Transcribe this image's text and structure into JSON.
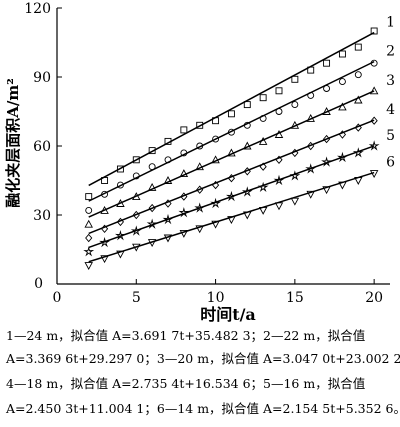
{
  "chart_data": {
    "type": "scatter",
    "xlabel": "时间t/a",
    "ylabel": "融化夹层面积A/m²",
    "xlim": [
      0,
      21
    ],
    "ylim": [
      0,
      120
    ],
    "xticks": [
      0,
      5,
      10,
      15,
      20
    ],
    "yticks": [
      30,
      60,
      90,
      120
    ],
    "grid": false,
    "series": [
      {
        "name": "1",
        "marker": "square",
        "fit": {
          "slope": 3.6917,
          "intercept": 35.4823
        },
        "points": [
          [
            2,
            38
          ],
          [
            3,
            45
          ],
          [
            4,
            50
          ],
          [
            5,
            54
          ],
          [
            6,
            58
          ],
          [
            7,
            62
          ],
          [
            8,
            67
          ],
          [
            9,
            69
          ],
          [
            10,
            71
          ],
          [
            11,
            74
          ],
          [
            12,
            78
          ],
          [
            13,
            81
          ],
          [
            14,
            84
          ],
          [
            15,
            89
          ],
          [
            16,
            93
          ],
          [
            17,
            96
          ],
          [
            18,
            100
          ],
          [
            19,
            103
          ],
          [
            20,
            110
          ]
        ]
      },
      {
        "name": "2",
        "marker": "circle",
        "fit": {
          "slope": 3.3696,
          "intercept": 29.297
        },
        "points": [
          [
            2,
            32
          ],
          [
            3,
            39
          ],
          [
            4,
            43
          ],
          [
            5,
            47
          ],
          [
            6,
            51
          ],
          [
            7,
            54
          ],
          [
            8,
            57
          ],
          [
            9,
            60
          ],
          [
            10,
            63
          ],
          [
            11,
            66
          ],
          [
            12,
            69
          ],
          [
            13,
            72
          ],
          [
            14,
            75
          ],
          [
            15,
            78
          ],
          [
            16,
            82
          ],
          [
            17,
            85
          ],
          [
            18,
            88
          ],
          [
            19,
            91
          ],
          [
            20,
            96
          ]
        ]
      },
      {
        "name": "3",
        "marker": "triangle-up",
        "fit": {
          "slope": 3.047,
          "intercept": 23.0022
        },
        "points": [
          [
            2,
            26
          ],
          [
            3,
            32
          ],
          [
            4,
            35
          ],
          [
            5,
            38
          ],
          [
            6,
            42
          ],
          [
            7,
            45
          ],
          [
            8,
            48
          ],
          [
            9,
            51
          ],
          [
            10,
            54
          ],
          [
            11,
            57
          ],
          [
            12,
            60
          ],
          [
            13,
            62
          ],
          [
            14,
            65
          ],
          [
            15,
            69
          ],
          [
            16,
            72
          ],
          [
            17,
            75
          ],
          [
            18,
            77
          ],
          [
            19,
            80
          ],
          [
            20,
            84
          ]
        ]
      },
      {
        "name": "4",
        "marker": "diamond",
        "fit": {
          "slope": 2.7354,
          "intercept": 16.5346
        },
        "points": [
          [
            2,
            20
          ],
          [
            3,
            24
          ],
          [
            4,
            27
          ],
          [
            5,
            30
          ],
          [
            6,
            33
          ],
          [
            7,
            35
          ],
          [
            8,
            38
          ],
          [
            9,
            41
          ],
          [
            10,
            43
          ],
          [
            11,
            46
          ],
          [
            12,
            49
          ],
          [
            13,
            51
          ],
          [
            14,
            54
          ],
          [
            15,
            57
          ],
          [
            16,
            60
          ],
          [
            17,
            63
          ],
          [
            18,
            65
          ],
          [
            19,
            68
          ],
          [
            20,
            71
          ]
        ]
      },
      {
        "name": "5",
        "marker": "star",
        "fit": {
          "slope": 2.4503,
          "intercept": 11.0041
        },
        "points": [
          [
            2,
            14
          ],
          [
            3,
            18
          ],
          [
            4,
            21
          ],
          [
            5,
            23
          ],
          [
            6,
            26
          ],
          [
            7,
            28
          ],
          [
            8,
            31
          ],
          [
            9,
            33
          ],
          [
            10,
            35
          ],
          [
            11,
            38
          ],
          [
            12,
            40
          ],
          [
            13,
            42
          ],
          [
            14,
            45
          ],
          [
            15,
            47
          ],
          [
            16,
            50
          ],
          [
            17,
            53
          ],
          [
            18,
            55
          ],
          [
            19,
            57
          ],
          [
            20,
            60
          ]
        ]
      },
      {
        "name": "6",
        "marker": "triangle-down",
        "fit": {
          "slope": 2.1545,
          "intercept": 5.3526
        },
        "points": [
          [
            2,
            8
          ],
          [
            3,
            11
          ],
          [
            4,
            13
          ],
          [
            5,
            16
          ],
          [
            6,
            18
          ],
          [
            7,
            20
          ],
          [
            8,
            22
          ],
          [
            9,
            24
          ],
          [
            10,
            26
          ],
          [
            11,
            28
          ],
          [
            12,
            30
          ],
          [
            13,
            32
          ],
          [
            14,
            34
          ],
          [
            15,
            36
          ],
          [
            16,
            39
          ],
          [
            17,
            41
          ],
          [
            18,
            43
          ],
          [
            19,
            45
          ],
          [
            20,
            48
          ]
        ]
      }
    ]
  },
  "caption": {
    "lines": [
      "1—24 m，拟合值 A=3.691 7t+35.482 3；2—22 m，拟合值",
      "A=3.369 6t+29.297 0；3—20 m，拟合值 A=3.047 0t+23.002 2；",
      "4—18 m，拟合值 A=2.735 4t+16.534 6；5—16 m，拟合值",
      "A=2.450 3t+11.004 1；6—14 m，拟合值 A=2.154 5t+5.352 6。"
    ]
  }
}
